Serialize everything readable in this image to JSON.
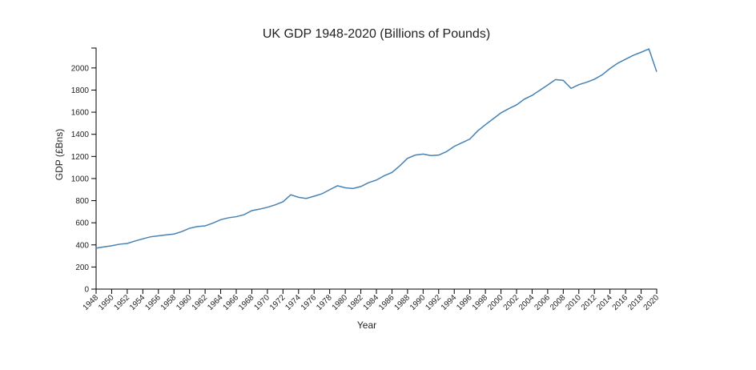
{
  "chart_data": {
    "type": "line",
    "title": "UK GDP 1948-2020 (Billions of Pounds)",
    "xlabel": "Year",
    "ylabel": "GDP (£Bns)",
    "xlim": [
      1948,
      2020
    ],
    "ylim": [
      0,
      2180
    ],
    "x_ticks": [
      1948,
      1950,
      1952,
      1954,
      1956,
      1958,
      1960,
      1962,
      1964,
      1966,
      1968,
      1970,
      1972,
      1974,
      1976,
      1978,
      1980,
      1982,
      1984,
      1986,
      1988,
      1990,
      1992,
      1994,
      1996,
      1998,
      2000,
      2002,
      2004,
      2006,
      2008,
      2010,
      2012,
      2014,
      2016,
      2018,
      2020
    ],
    "y_ticks": [
      0,
      200,
      400,
      600,
      800,
      1000,
      1200,
      1400,
      1600,
      1800,
      2000
    ],
    "grid": false,
    "line_color": "#4682b4",
    "series": [
      {
        "x": [
          1948,
          1949,
          1950,
          1951,
          1952,
          1953,
          1954,
          1955,
          1956,
          1957,
          1958,
          1959,
          1960,
          1961,
          1962,
          1963,
          1964,
          1965,
          1966,
          1967,
          1968,
          1969,
          1970,
          1971,
          1972,
          1973,
          1974,
          1975,
          1976,
          1977,
          1978,
          1979,
          1980,
          1981,
          1982,
          1983,
          1984,
          1985,
          1986,
          1987,
          1988,
          1989,
          1990,
          1991,
          1992,
          1993,
          1994,
          1995,
          1996,
          1997,
          1998,
          1999,
          2000,
          2001,
          2002,
          2003,
          2004,
          2005,
          2006,
          2007,
          2008,
          2009,
          2010,
          2011,
          2012,
          2013,
          2014,
          2015,
          2016,
          2017,
          2018,
          2019,
          2020
        ],
        "values": [
          370,
          382,
          392,
          406,
          413,
          435,
          455,
          473,
          482,
          491,
          498,
          520,
          550,
          566,
          572,
          597,
          628,
          645,
          655,
          673,
          710,
          723,
          740,
          762,
          790,
          853,
          830,
          820,
          840,
          862,
          899,
          935,
          916,
          910,
          928,
          963,
          986,
          1025,
          1055,
          1115,
          1183,
          1212,
          1221,
          1208,
          1212,
          1243,
          1291,
          1324,
          1357,
          1430,
          1487,
          1540,
          1594,
          1632,
          1666,
          1718,
          1752,
          1799,
          1846,
          1895,
          1888,
          1815,
          1849,
          1871,
          1898,
          1938,
          1995,
          2043,
          2079,
          2114,
          2142,
          2172,
          1965
        ]
      }
    ]
  }
}
